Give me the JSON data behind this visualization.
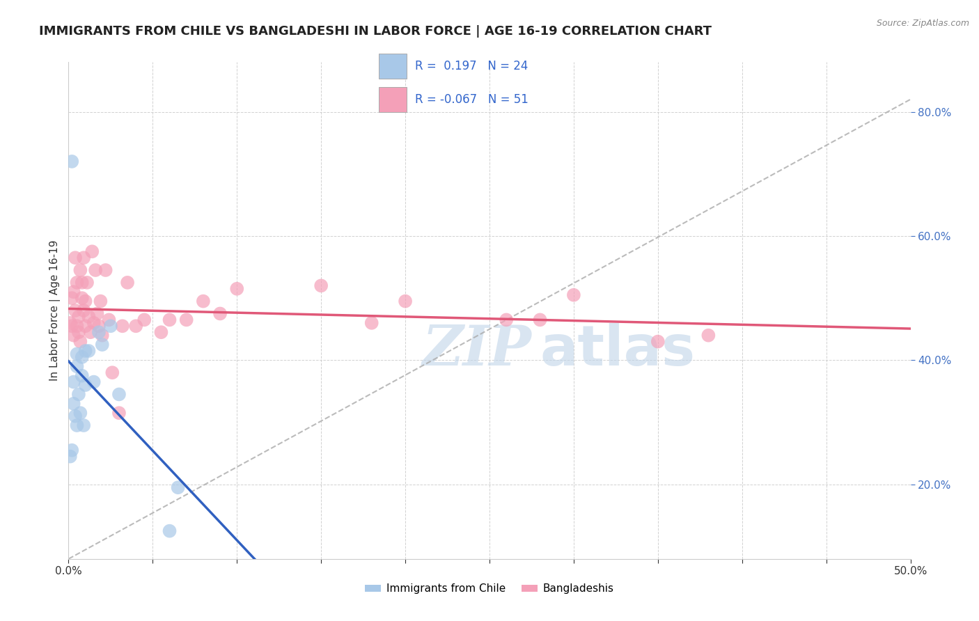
{
  "title": "IMMIGRANTS FROM CHILE VS BANGLADESHI IN LABOR FORCE | AGE 16-19 CORRELATION CHART",
  "source": "Source: ZipAtlas.com",
  "ylabel": "In Labor Force | Age 16-19",
  "xlim": [
    0.0,
    0.5
  ],
  "ylim": [
    0.08,
    0.88
  ],
  "xticks": [
    0.0,
    0.05,
    0.1,
    0.15,
    0.2,
    0.25,
    0.3,
    0.35,
    0.4,
    0.45,
    0.5
  ],
  "xtick_labels": [
    "0.0%",
    "",
    "",
    "",
    "",
    "",
    "",
    "",
    "",
    "",
    "50.0%"
  ],
  "yticks_right": [
    0.2,
    0.4,
    0.6,
    0.8
  ],
  "ytick_labels_right": [
    "20.0%",
    "40.0%",
    "60.0%",
    "80.0%"
  ],
  "R_chile": 0.197,
  "N_chile": 24,
  "R_bangla": -0.067,
  "N_bangla": 51,
  "color_chile": "#a8c8e8",
  "color_bangla": "#f4a0b8",
  "line_color_chile": "#3060c0",
  "line_color_bangla": "#e05878",
  "ref_line_color": "#aaaaaa",
  "chile_x": [
    0.001,
    0.002,
    0.003,
    0.003,
    0.004,
    0.005,
    0.005,
    0.006,
    0.007,
    0.008,
    0.009,
    0.01,
    0.012,
    0.015,
    0.018,
    0.02,
    0.025,
    0.03,
    0.06,
    0.065,
    0.008,
    0.01,
    0.005,
    0.002
  ],
  "chile_y": [
    0.245,
    0.255,
    0.33,
    0.365,
    0.31,
    0.295,
    0.39,
    0.345,
    0.315,
    0.405,
    0.295,
    0.36,
    0.415,
    0.365,
    0.445,
    0.425,
    0.455,
    0.345,
    0.125,
    0.195,
    0.375,
    0.415,
    0.41,
    0.72
  ],
  "bangla_x": [
    0.001,
    0.002,
    0.002,
    0.003,
    0.003,
    0.004,
    0.004,
    0.005,
    0.005,
    0.006,
    0.006,
    0.007,
    0.007,
    0.008,
    0.008,
    0.009,
    0.009,
    0.01,
    0.01,
    0.011,
    0.012,
    0.013,
    0.014,
    0.015,
    0.016,
    0.017,
    0.018,
    0.019,
    0.02,
    0.022,
    0.024,
    0.026,
    0.03,
    0.032,
    0.035,
    0.04,
    0.045,
    0.055,
    0.06,
    0.07,
    0.08,
    0.09,
    0.1,
    0.15,
    0.18,
    0.2,
    0.26,
    0.28,
    0.3,
    0.35,
    0.38
  ],
  "bangla_y": [
    0.46,
    0.455,
    0.5,
    0.44,
    0.51,
    0.565,
    0.48,
    0.455,
    0.525,
    0.445,
    0.47,
    0.545,
    0.43,
    0.5,
    0.525,
    0.48,
    0.565,
    0.455,
    0.495,
    0.525,
    0.47,
    0.445,
    0.575,
    0.46,
    0.545,
    0.475,
    0.455,
    0.495,
    0.44,
    0.545,
    0.465,
    0.38,
    0.315,
    0.455,
    0.525,
    0.455,
    0.465,
    0.445,
    0.465,
    0.465,
    0.495,
    0.475,
    0.515,
    0.52,
    0.46,
    0.495,
    0.465,
    0.465,
    0.505,
    0.43,
    0.44
  ],
  "background_color": "#ffffff",
  "grid_color": "#cccccc",
  "watermark_color": "#c0d4e8",
  "legend_box_color": "#cccccc",
  "title_color": "#222222",
  "source_color": "#888888"
}
